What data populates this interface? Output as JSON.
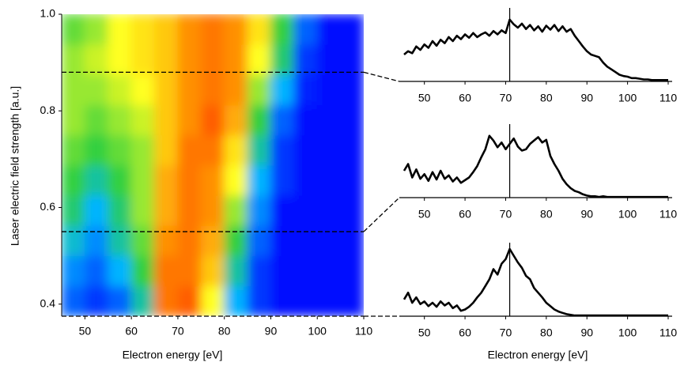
{
  "chart_data": [
    {
      "type": "heatmap",
      "xlabel": "Electron energy [eV]",
      "ylabel": "Laser electric field strength [a.u.]",
      "xlim": [
        45,
        110
      ],
      "ylim": [
        0.375,
        1.0
      ],
      "xticks": [
        50,
        60,
        70,
        80,
        90,
        100,
        110
      ],
      "yticks": [
        0.4,
        0.6,
        0.8,
        {
          "value": 1,
          "label": "1.0"
        }
      ],
      "x_edges": [
        45,
        50,
        55,
        60,
        65,
        70,
        75,
        80,
        85,
        90,
        95,
        100,
        105,
        110
      ],
      "y_edges": [
        0.375,
        0.4375,
        0.5,
        0.5625,
        0.625,
        0.6875,
        0.75,
        0.8125,
        0.875,
        0.9375,
        1.0
      ],
      "z": [
        [
          0.1,
          0.05,
          0.1,
          0.3,
          0.85,
          0.9,
          0.6,
          0.2,
          0.05,
          0,
          0,
          0,
          0
        ],
        [
          0.15,
          0.1,
          0.2,
          0.4,
          0.85,
          0.85,
          0.7,
          0.3,
          0.05,
          0,
          0,
          0,
          0
        ],
        [
          0.25,
          0.15,
          0.3,
          0.45,
          0.8,
          0.85,
          0.75,
          0.4,
          0.1,
          0,
          0,
          0,
          0
        ],
        [
          0.35,
          0.2,
          0.35,
          0.5,
          0.75,
          0.85,
          0.8,
          0.5,
          0.15,
          0,
          0,
          0,
          0
        ],
        [
          0.4,
          0.3,
          0.4,
          0.5,
          0.75,
          0.85,
          0.8,
          0.6,
          0.2,
          0.05,
          0,
          0,
          0
        ],
        [
          0.45,
          0.4,
          0.45,
          0.5,
          0.7,
          0.85,
          0.85,
          0.65,
          0.3,
          0.05,
          0,
          0,
          0
        ],
        [
          0.5,
          0.45,
          0.5,
          0.55,
          0.7,
          0.8,
          0.9,
          0.75,
          0.4,
          0.1,
          0,
          0,
          0
        ],
        [
          0.5,
          0.5,
          0.55,
          0.6,
          0.7,
          0.8,
          0.85,
          0.8,
          0.5,
          0.2,
          0.02,
          0,
          0
        ],
        [
          0.5,
          0.55,
          0.6,
          0.65,
          0.7,
          0.8,
          0.85,
          0.8,
          0.6,
          0.35,
          0.05,
          0,
          0
        ],
        [
          0.45,
          0.5,
          0.6,
          0.65,
          0.7,
          0.8,
          0.85,
          0.8,
          0.65,
          0.4,
          0.1,
          0,
          0
        ]
      ],
      "colormap": [
        "#0010ff",
        "#00b4ff",
        "#30d040",
        "#ffff20",
        "#ff9000",
        "#ff2a00"
      ],
      "cut_levels": [
        0.88,
        0.55,
        0.375
      ]
    },
    {
      "type": "line",
      "xlabel": "Electron energy [eV]",
      "xlim": [
        45,
        110
      ],
      "xticks": [
        50,
        60,
        70,
        80,
        90,
        100,
        110
      ],
      "marker_x": 71,
      "color": "#000000",
      "x": [
        45,
        46,
        47,
        48,
        49,
        50,
        51,
        52,
        53,
        54,
        55,
        56,
        57,
        58,
        59,
        60,
        61,
        62,
        63,
        64,
        65,
        66,
        67,
        68,
        69,
        70,
        71,
        72,
        73,
        74,
        75,
        76,
        77,
        78,
        79,
        80,
        81,
        82,
        83,
        84,
        85,
        86,
        87,
        88,
        89,
        90,
        91,
        92,
        93,
        94,
        95,
        96,
        97,
        98,
        99,
        100,
        101,
        102,
        103,
        104,
        105,
        106,
        107,
        108,
        109,
        110
      ],
      "series": [
        {
          "values": [
            0.4,
            0.45,
            0.42,
            0.52,
            0.47,
            0.55,
            0.5,
            0.6,
            0.53,
            0.62,
            0.57,
            0.66,
            0.6,
            0.68,
            0.63,
            0.7,
            0.65,
            0.72,
            0.66,
            0.7,
            0.73,
            0.68,
            0.75,
            0.7,
            0.76,
            0.72,
            0.92,
            0.85,
            0.8,
            0.86,
            0.78,
            0.84,
            0.76,
            0.82,
            0.74,
            0.83,
            0.77,
            0.84,
            0.75,
            0.82,
            0.74,
            0.78,
            0.68,
            0.6,
            0.52,
            0.45,
            0.4,
            0.38,
            0.36,
            0.28,
            0.22,
            0.18,
            0.14,
            0.1,
            0.08,
            0.07,
            0.05,
            0.05,
            0.04,
            0.03,
            0.03,
            0.02,
            0.02,
            0.02,
            0.02,
            0.02
          ]
        },
        {
          "values": [
            0.4,
            0.5,
            0.3,
            0.42,
            0.28,
            0.35,
            0.25,
            0.38,
            0.27,
            0.4,
            0.28,
            0.33,
            0.24,
            0.3,
            0.22,
            0.26,
            0.3,
            0.38,
            0.47,
            0.6,
            0.72,
            0.92,
            0.85,
            0.75,
            0.82,
            0.72,
            0.8,
            0.88,
            0.76,
            0.7,
            0.72,
            0.8,
            0.85,
            0.9,
            0.82,
            0.86,
            0.62,
            0.5,
            0.4,
            0.28,
            0.2,
            0.14,
            0.1,
            0.08,
            0.05,
            0.03,
            0.02,
            0.02,
            0.01,
            0.02,
            0.01,
            0.01,
            0.01,
            0.01,
            0.01,
            0.01,
            0.01,
            0.01,
            0.01,
            0.01,
            0.01,
            0.01,
            0.01,
            0.01,
            0.01,
            0.01
          ]
        },
        {
          "values": [
            0.25,
            0.35,
            0.2,
            0.28,
            0.18,
            0.22,
            0.15,
            0.2,
            0.14,
            0.22,
            0.16,
            0.2,
            0.12,
            0.16,
            0.08,
            0.1,
            0.14,
            0.2,
            0.28,
            0.35,
            0.45,
            0.55,
            0.7,
            0.62,
            0.78,
            0.85,
            1.0,
            0.9,
            0.8,
            0.72,
            0.6,
            0.55,
            0.42,
            0.35,
            0.28,
            0.2,
            0.15,
            0.1,
            0.07,
            0.05,
            0.03,
            0.02,
            0.01,
            0.01,
            0.01,
            0.01,
            0.01,
            0.01,
            0.01,
            0.01,
            0.01,
            0.01,
            0.01,
            0.01,
            0.01,
            0.01,
            0.01,
            0.01,
            0.01,
            0.01,
            0.01,
            0.01,
            0.01,
            0.01,
            0.01,
            0.01
          ]
        }
      ]
    }
  ]
}
